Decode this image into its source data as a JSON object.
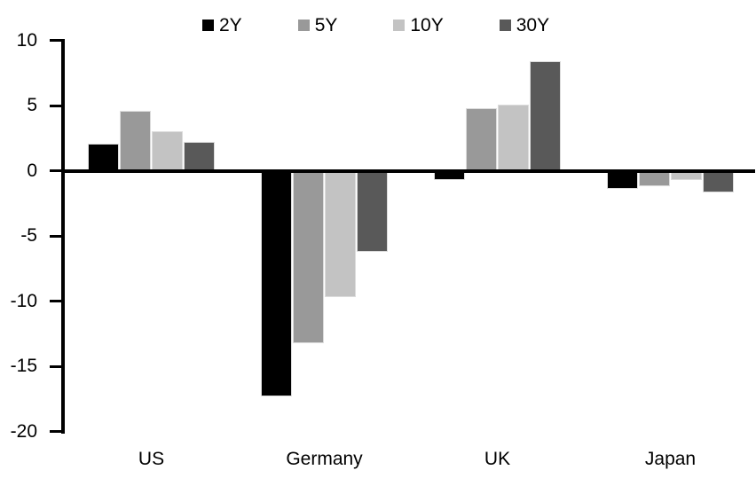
{
  "chart_data": {
    "type": "bar",
    "title": "",
    "categories": [
      "US",
      "Germany",
      "UK",
      "Japan"
    ],
    "series": [
      {
        "name": "2Y",
        "color": "#000000",
        "values": [
          2.1,
          -17.3,
          -0.7,
          -1.4
        ]
      },
      {
        "name": "5Y",
        "color": "#999999",
        "values": [
          4.6,
          -13.2,
          4.8,
          -1.2
        ]
      },
      {
        "name": "10Y",
        "color": "#c3c3c3",
        "values": [
          3.0,
          -9.7,
          5.1,
          -0.7
        ]
      },
      {
        "name": "30Y",
        "color": "#595959",
        "values": [
          2.2,
          -6.2,
          8.4,
          -1.7
        ]
      }
    ],
    "ylim": [
      -20,
      10
    ],
    "y_ticks": [
      10,
      5,
      0,
      -5,
      -10,
      -15,
      -20
    ],
    "xlabel": "",
    "ylabel": "",
    "grid": false,
    "legend_position": "top-center",
    "axis_color": "#000000",
    "bar_outline_color": "#dcdcdc",
    "background_color": "#ffffff"
  }
}
